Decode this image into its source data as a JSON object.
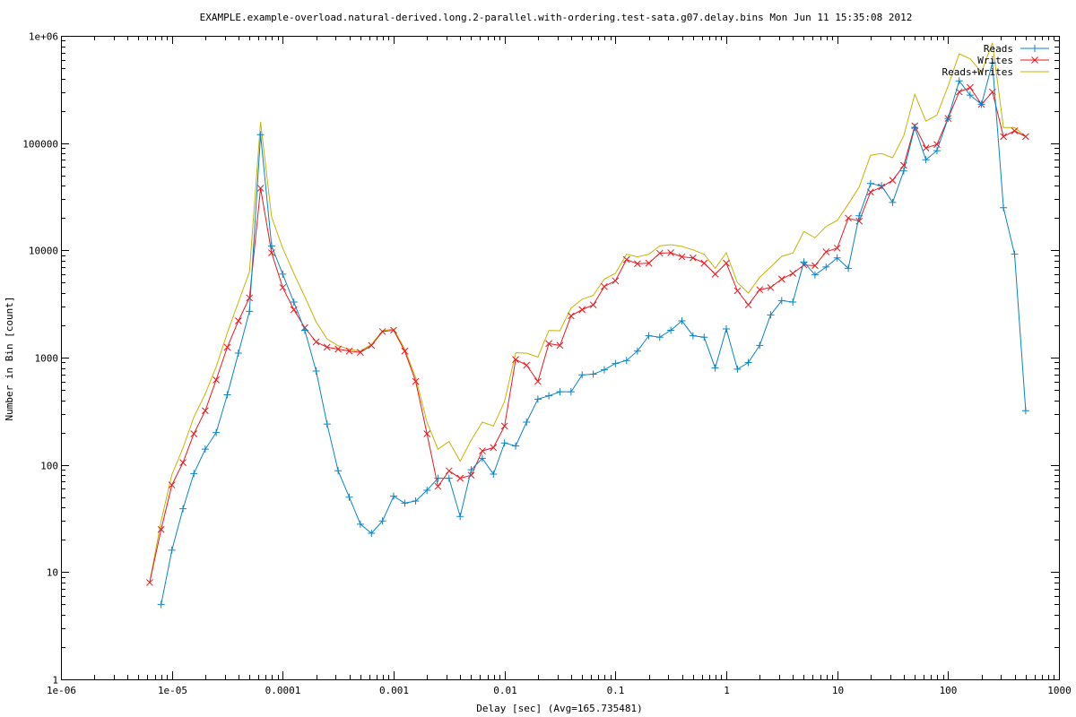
{
  "chart_data": {
    "type": "line",
    "title": "EXAMPLE.example-overload.natural-derived.long.2-parallel.with-ordering.test-sata.g07.delay.bins Mon Jun 11 15:35:08 2012",
    "xlabel": "Delay [sec]  (Avg=165.735481)",
    "ylabel": "Number in Bin [count]",
    "x_scale": "log",
    "y_scale": "log",
    "xlim": [
      1e-06,
      1000
    ],
    "ylim": [
      1,
      1000000
    ],
    "x_tick_labels": [
      "1e-06",
      "1e-05",
      "0.0001",
      "0.001",
      "0.01",
      "0.1",
      "1",
      "10",
      "100",
      "1000"
    ],
    "y_tick_labels": [
      "1",
      "10",
      "100",
      "1000",
      "10000",
      "100000",
      "1e+06"
    ],
    "legend_position": "top-right",
    "grid": false,
    "series": [
      {
        "name": "Reads",
        "color": "#0a84c8",
        "marker": "plus",
        "x": [
          8e-06,
          1e-05,
          1.26e-05,
          1.58e-05,
          2e-05,
          2.51e-05,
          3.16e-05,
          3.98e-05,
          5.01e-05,
          6.31e-05,
          7.94e-05,
          0.0001,
          0.000126,
          0.000158,
          0.0002,
          0.000251,
          0.000316,
          0.000398,
          0.000501,
          0.000631,
          0.000794,
          0.001,
          0.00126,
          0.00158,
          0.002,
          0.00251,
          0.00316,
          0.00398,
          0.00501,
          0.00631,
          0.00794,
          0.01,
          0.0126,
          0.0158,
          0.02,
          0.0251,
          0.0316,
          0.0398,
          0.0501,
          0.0631,
          0.0794,
          0.1,
          0.126,
          0.158,
          0.2,
          0.251,
          0.316,
          0.398,
          0.501,
          0.631,
          0.794,
          1,
          1.26,
          1.58,
          2,
          2.51,
          3.16,
          3.98,
          5.01,
          6.31,
          7.94,
          10,
          12.6,
          15.8,
          20,
          25.1,
          31.6,
          39.8,
          50.1,
          63.1,
          79.4,
          100,
          126,
          158,
          200,
          251,
          316,
          398,
          501
        ],
        "values": [
          5,
          16,
          39,
          83,
          140,
          200,
          450,
          1100,
          2700,
          120000,
          11000,
          6000,
          3300,
          1800,
          750,
          240,
          88,
          50,
          28,
          23,
          30,
          51,
          44,
          46,
          58,
          75,
          75,
          33,
          90,
          115,
          82,
          160,
          150,
          250,
          410,
          440,
          480,
          480,
          690,
          700,
          770,
          880,
          940,
          1150,
          1600,
          1550,
          1800,
          2200,
          1600,
          1550,
          800,
          1850,
          780,
          900,
          1300,
          2500,
          3400,
          3300,
          7800,
          5900,
          7000,
          8500,
          6800,
          21000,
          42000,
          40000,
          28000,
          55000,
          140000,
          70000,
          85000,
          170000,
          380000,
          280000,
          230000,
          560000,
          25000,
          9200,
          320
        ]
      },
      {
        "name": "Writes",
        "color": "#e8191f",
        "marker": "cross",
        "x": [
          6.31e-06,
          8e-06,
          1e-05,
          1.26e-05,
          1.58e-05,
          2e-05,
          2.51e-05,
          3.16e-05,
          3.98e-05,
          5.01e-05,
          6.31e-05,
          7.94e-05,
          0.0001,
          0.000126,
          0.000158,
          0.0002,
          0.000251,
          0.000316,
          0.000398,
          0.000501,
          0.000631,
          0.000794,
          0.001,
          0.00126,
          0.00158,
          0.002,
          0.00251,
          0.00316,
          0.00398,
          0.00501,
          0.00631,
          0.00794,
          0.01,
          0.0126,
          0.0158,
          0.02,
          0.0251,
          0.0316,
          0.0398,
          0.0501,
          0.0631,
          0.0794,
          0.1,
          0.126,
          0.158,
          0.2,
          0.251,
          0.316,
          0.398,
          0.501,
          0.631,
          0.794,
          1,
          1.26,
          1.58,
          2,
          2.51,
          3.16,
          3.98,
          5.01,
          6.31,
          7.94,
          10,
          12.6,
          15.8,
          20,
          25.1,
          31.6,
          39.8,
          50.1,
          63.1,
          79.4,
          100,
          126,
          158,
          200,
          251,
          316,
          398,
          501
        ],
        "values": [
          8,
          25,
          65,
          105,
          195,
          320,
          620,
          1250,
          2200,
          3600,
          38000,
          9500,
          4500,
          2800,
          1900,
          1400,
          1250,
          1200,
          1150,
          1120,
          1300,
          1750,
          1800,
          1150,
          600,
          195,
          63,
          88,
          75,
          80,
          135,
          145,
          230,
          960,
          850,
          600,
          1350,
          1300,
          2450,
          2800,
          3100,
          4600,
          5200,
          8200,
          7500,
          7600,
          9400,
          9500,
          8700,
          8500,
          7600,
          6000,
          7600,
          4200,
          3100,
          4300,
          4500,
          5400,
          6100,
          7300,
          7200,
          9700,
          10500,
          20000,
          18700,
          35000,
          39000,
          45000,
          62000,
          145000,
          90000,
          97000,
          170000,
          300000,
          330000,
          230000,
          300000,
          115000,
          130000,
          115000
        ]
      },
      {
        "name": "Reads+Writes",
        "color": "#c8b400",
        "marker": "none",
        "x": [
          6.31e-06,
          8e-06,
          1e-05,
          1.26e-05,
          1.58e-05,
          2e-05,
          2.51e-05,
          3.16e-05,
          3.98e-05,
          5.01e-05,
          6.31e-05,
          7.94e-05,
          0.0001,
          0.000126,
          0.000158,
          0.0002,
          0.000251,
          0.000316,
          0.000398,
          0.000501,
          0.000631,
          0.000794,
          0.001,
          0.00126,
          0.00158,
          0.002,
          0.00251,
          0.00316,
          0.00398,
          0.00501,
          0.00631,
          0.00794,
          0.01,
          0.0126,
          0.0158,
          0.02,
          0.0251,
          0.0316,
          0.0398,
          0.0501,
          0.0631,
          0.0794,
          0.1,
          0.126,
          0.158,
          0.2,
          0.251,
          0.316,
          0.398,
          0.501,
          0.631,
          0.794,
          1,
          1.26,
          1.58,
          2,
          2.51,
          3.16,
          3.98,
          5.01,
          6.31,
          7.94,
          10,
          12.6,
          15.8,
          20,
          25.1,
          31.6,
          39.8,
          50.1,
          63.1,
          79.4,
          100,
          126,
          158,
          200,
          251,
          316,
          398,
          501
        ],
        "values": [
          8,
          30,
          81,
          144,
          278,
          460,
          820,
          1700,
          3300,
          6300,
          158000,
          20500,
          10500,
          6100,
          3700,
          2150,
          1490,
          1290,
          1200,
          1150,
          1330,
          1780,
          1850,
          1200,
          650,
          250,
          140,
          165,
          108,
          170,
          250,
          230,
          390,
          1110,
          1100,
          1010,
          1790,
          1780,
          2900,
          3500,
          3800,
          5400,
          6100,
          9200,
          8700,
          9200,
          11000,
          11300,
          10900,
          10100,
          9200,
          6800,
          9500,
          5000,
          4000,
          5600,
          7000,
          8800,
          9400,
          15000,
          13100,
          16700,
          19000,
          27000,
          39000,
          77000,
          80000,
          73000,
          117000,
          285000,
          160000,
          182000,
          340000,
          680000,
          610000,
          460000,
          860000,
          140000,
          140000,
          115000
        ]
      }
    ]
  }
}
